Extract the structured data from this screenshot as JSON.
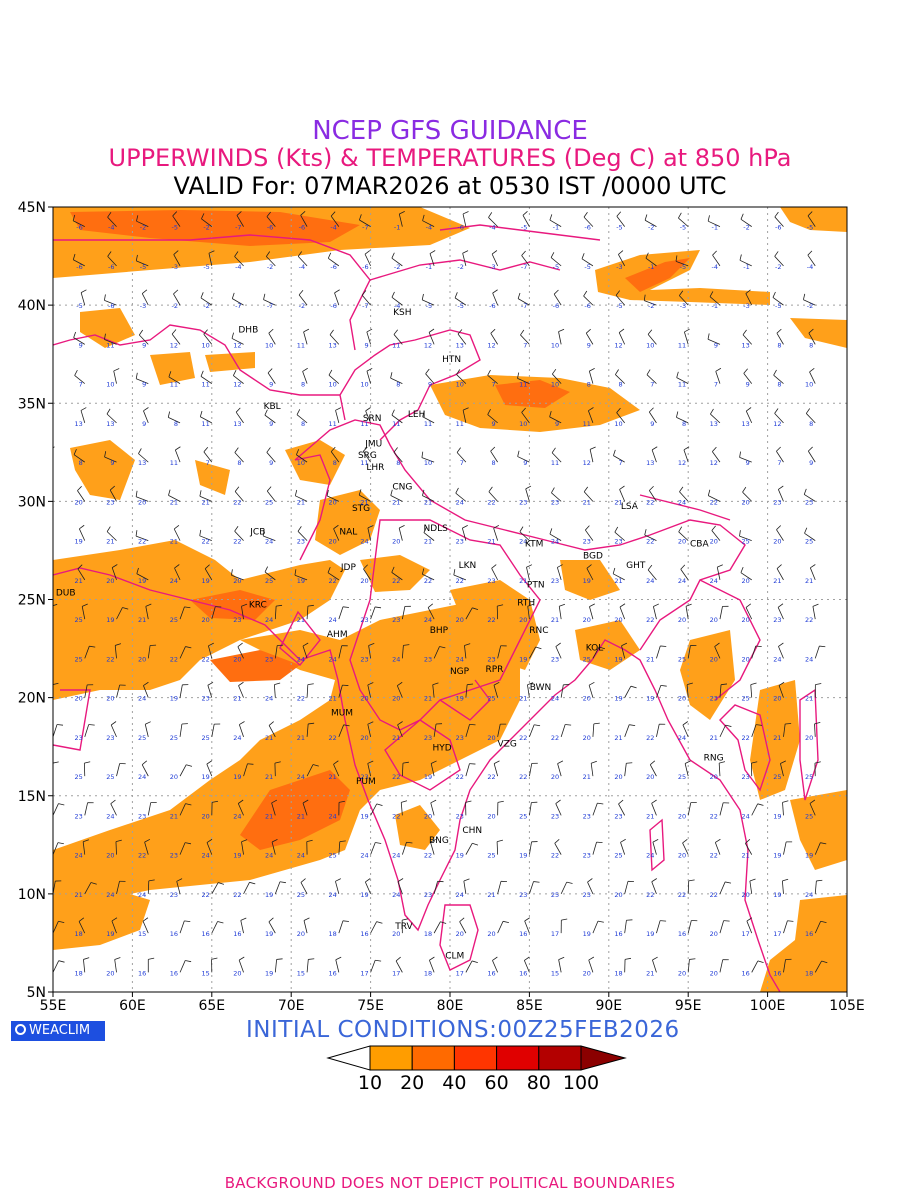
{
  "header": {
    "line1": "NCEP GFS GUIDANCE",
    "line2": "UPPERWINDS (Kts) & TEMPERATURES (Deg C) at 850 hPa",
    "line3": "VALID For: 07MAR2026 at 0530 IST /0000 UTC"
  },
  "axes": {
    "lat_labels": [
      "45N",
      "40N",
      "35N",
      "30N",
      "25N",
      "20N",
      "15N",
      "10N",
      "5N"
    ],
    "lon_labels": [
      "55E",
      "60E",
      "65E",
      "70E",
      "75E",
      "80E",
      "85E",
      "90E",
      "95E",
      "100E",
      "105E"
    ],
    "lat_range": [
      5,
      45
    ],
    "lon_range": [
      55,
      105
    ]
  },
  "cities": [
    {
      "name": "KSH",
      "lon": 77.0,
      "lat": 39.5
    },
    {
      "name": "DHB",
      "lon": 67.3,
      "lat": 38.6
    },
    {
      "name": "HTN",
      "lon": 80.1,
      "lat": 37.1
    },
    {
      "name": "KBL",
      "lon": 68.8,
      "lat": 34.7
    },
    {
      "name": "LEH",
      "lon": 77.9,
      "lat": 34.3
    },
    {
      "name": "SRN",
      "lon": 75.1,
      "lat": 34.1
    },
    {
      "name": "JMU",
      "lon": 75.2,
      "lat": 32.8
    },
    {
      "name": "SRG",
      "lon": 74.8,
      "lat": 32.2
    },
    {
      "name": "LHR",
      "lon": 75.3,
      "lat": 31.6
    },
    {
      "name": "CNG",
      "lon": 77.0,
      "lat": 30.6
    },
    {
      "name": "LSA",
      "lon": 91.3,
      "lat": 29.6
    },
    {
      "name": "STG",
      "lon": 74.4,
      "lat": 29.5
    },
    {
      "name": "NDLS",
      "lon": 79.1,
      "lat": 28.5
    },
    {
      "name": "JCB",
      "lon": 67.9,
      "lat": 28.3
    },
    {
      "name": "NAL",
      "lon": 73.6,
      "lat": 28.3
    },
    {
      "name": "KTM",
      "lon": 85.3,
      "lat": 27.7
    },
    {
      "name": "BGD",
      "lon": 89.0,
      "lat": 27.1
    },
    {
      "name": "CBA",
      "lon": 95.7,
      "lat": 27.7
    },
    {
      "name": "LKN",
      "lon": 81.1,
      "lat": 26.6
    },
    {
      "name": "GHT",
      "lon": 91.7,
      "lat": 26.6
    },
    {
      "name": "JDP",
      "lon": 73.6,
      "lat": 26.5
    },
    {
      "name": "PTN",
      "lon": 85.4,
      "lat": 25.6
    },
    {
      "name": "DUB",
      "lon": 55.8,
      "lat": 25.2
    },
    {
      "name": "KRC",
      "lon": 67.9,
      "lat": 24.6
    },
    {
      "name": "RTH",
      "lon": 84.8,
      "lat": 24.7
    },
    {
      "name": "BHP",
      "lon": 79.3,
      "lat": 23.3
    },
    {
      "name": "RNC",
      "lon": 85.6,
      "lat": 23.3
    },
    {
      "name": "AHM",
      "lon": 72.9,
      "lat": 23.1
    },
    {
      "name": "KOL",
      "lon": 89.1,
      "lat": 22.4
    },
    {
      "name": "NGP",
      "lon": 80.6,
      "lat": 21.2
    },
    {
      "name": "RPR",
      "lon": 82.8,
      "lat": 21.3
    },
    {
      "name": "BWN",
      "lon": 85.7,
      "lat": 20.4
    },
    {
      "name": "MUM",
      "lon": 73.2,
      "lat": 19.1
    },
    {
      "name": "HYD",
      "lon": 79.5,
      "lat": 17.3
    },
    {
      "name": "VZG",
      "lon": 83.6,
      "lat": 17.5
    },
    {
      "name": "RNG",
      "lon": 96.6,
      "lat": 16.8
    },
    {
      "name": "PUM",
      "lon": 74.7,
      "lat": 15.6
    },
    {
      "name": "CHN",
      "lon": 81.4,
      "lat": 13.1
    },
    {
      "name": "BNG",
      "lon": 79.3,
      "lat": 12.6
    },
    {
      "name": "TRV",
      "lon": 77.1,
      "lat": 8.2
    },
    {
      "name": "CLM",
      "lon": 80.3,
      "lat": 6.7
    }
  ],
  "legend": {
    "labels": [
      "10",
      "20",
      "40",
      "60",
      "80",
      "100"
    ],
    "colors": [
      "#ffffff",
      "#ff9d00",
      "#ff6a00",
      "#ff3500",
      "#e00000",
      "#b30000",
      "#8b0000"
    ]
  },
  "shading": {
    "fill_colors": [
      "#ffa01a",
      "#ff6e10",
      "#ff3a00"
    ],
    "boundary_color": "#e8197e",
    "grid_color": "#a0a0a0",
    "temp_color": "#1f3bd6"
  },
  "footer": {
    "logo": "WEACLIM",
    "initial": "INITIAL CONDITIONS:00Z25FEB2026",
    "disclaimer": "BACKGROUND DOES NOT DEPICT POLITICAL BOUNDARIES"
  }
}
